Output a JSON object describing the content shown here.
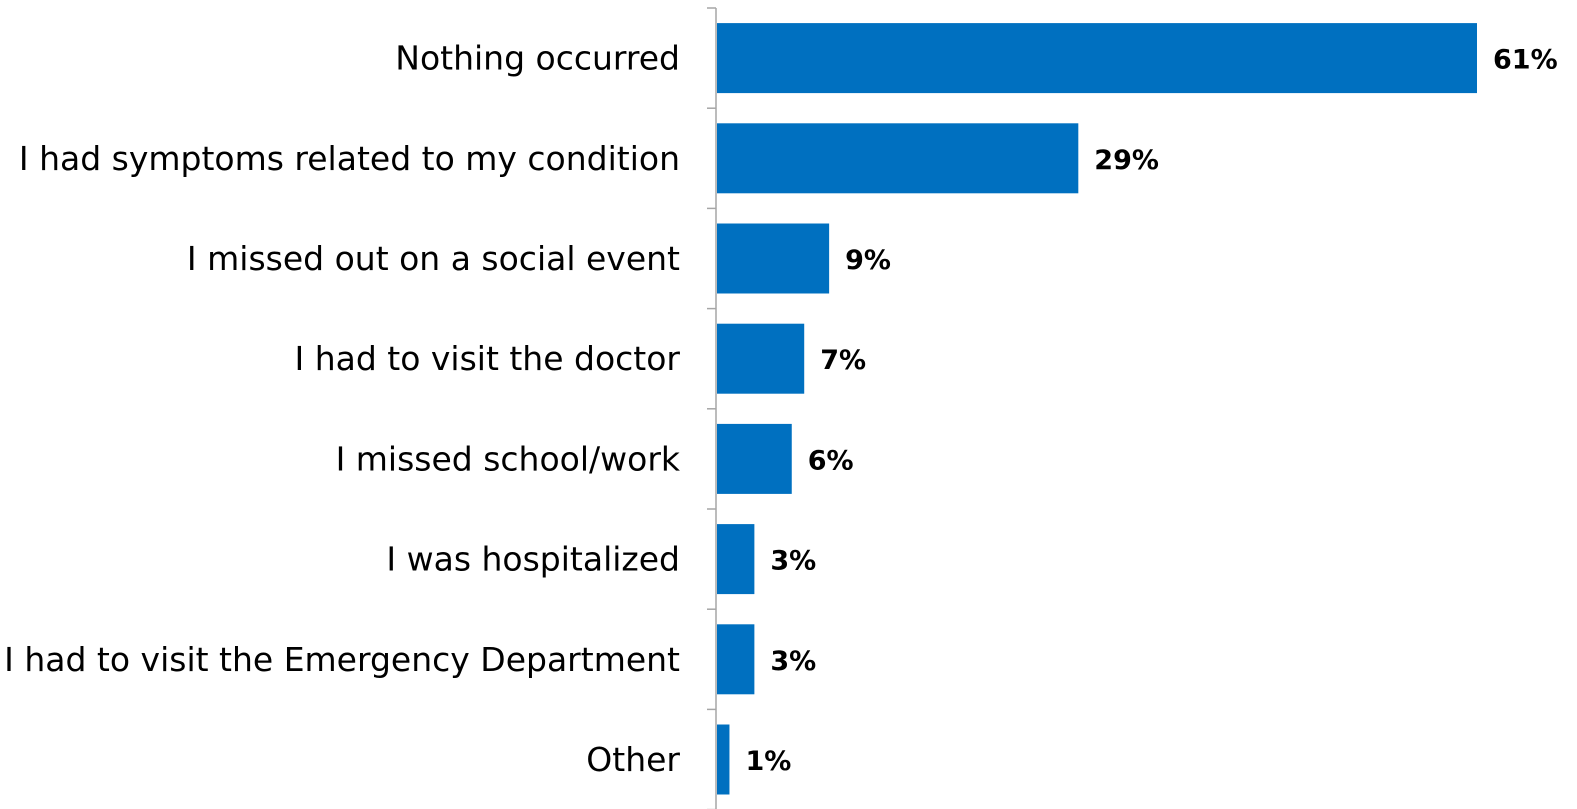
{
  "chart_data": {
    "type": "bar",
    "orientation": "horizontal",
    "categories": [
      "Nothing occurred",
      "I had symptoms related to my condition",
      "I missed out on a social event",
      "I had to visit the doctor",
      "I missed school/work",
      "I was hospitalized",
      "I had to visit the Emergency Department",
      "Other"
    ],
    "values": [
      61,
      29,
      9,
      7,
      6,
      3,
      3,
      1
    ],
    "value_labels": [
      "61%",
      "29%",
      "9%",
      "7%",
      "6%",
      "3%",
      "3%",
      "1%"
    ],
    "xlim": [
      0,
      61
    ],
    "grid": false,
    "legend": "none",
    "bar_color": "#0070C0",
    "axis_color": "#A6A6A6"
  }
}
